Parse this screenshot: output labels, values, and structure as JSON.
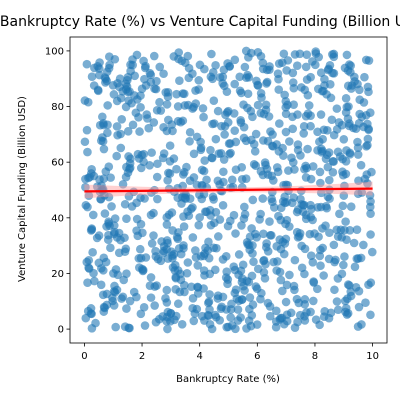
{
  "chart_data": {
    "type": "scatter",
    "title": "Bankruptcy Rate (%) vs Venture Capital Funding (Billion USD)",
    "xlabel": "Bankruptcy Rate (%)",
    "ylabel": "Venture Capital Funding (Billion USD)",
    "xlim": [
      -0.5,
      10.5
    ],
    "ylim": [
      -5,
      105
    ],
    "x_ticks": [
      0,
      2,
      4,
      6,
      8,
      10
    ],
    "y_ticks": [
      0,
      20,
      40,
      60,
      80,
      100
    ],
    "grid": false,
    "series": [
      {
        "marker_color": "#1f77b4",
        "marker_alpha": 0.6,
        "point_count": 1000,
        "x_range": [
          0,
          10
        ],
        "y_range": [
          0,
          100
        ],
        "distribution": "uniform"
      }
    ],
    "trend_line": {
      "color": "#ff0000",
      "x": [
        0,
        10
      ],
      "y": [
        49.5,
        50.5
      ],
      "confidence_band_color": "#ff9999"
    }
  }
}
